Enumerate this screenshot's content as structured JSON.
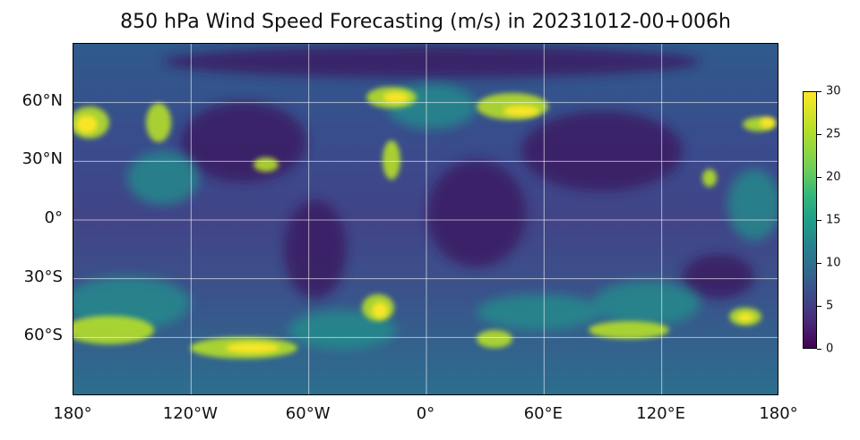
{
  "title": "850 hPa Wind Speed Forecasting (m/s) in 20231012-00+006h",
  "map": {
    "projection": "plate-carree",
    "variable": "wind speed",
    "units": "m/s",
    "colormap": "viridis",
    "gridlines": true,
    "lon_range": [
      -180,
      180
    ],
    "lat_range": [
      -90,
      90
    ],
    "lat_ticks": [
      {
        "value": 60,
        "label": "60°N"
      },
      {
        "value": 30,
        "label": "30°N"
      },
      {
        "value": 0,
        "label": "0°"
      },
      {
        "value": -30,
        "label": "30°S"
      },
      {
        "value": -60,
        "label": "60°S"
      }
    ],
    "lon_ticks": [
      {
        "value": -180,
        "label": "180°"
      },
      {
        "value": -120,
        "label": "120°W"
      },
      {
        "value": -60,
        "label": "60°W"
      },
      {
        "value": 0,
        "label": "0°"
      },
      {
        "value": 60,
        "label": "60°E"
      },
      {
        "value": 120,
        "label": "120°E"
      },
      {
        "value": 180,
        "label": "180°"
      }
    ]
  },
  "colorbar": {
    "min": 0,
    "max": 30,
    "ticks": [
      {
        "value": 30,
        "label": "30"
      },
      {
        "value": 25,
        "label": "25"
      },
      {
        "value": 20,
        "label": "20"
      },
      {
        "value": 15,
        "label": "15"
      },
      {
        "value": 10,
        "label": "10"
      },
      {
        "value": 5,
        "label": "5"
      },
      {
        "value": 0,
        "label": "0"
      }
    ]
  }
}
